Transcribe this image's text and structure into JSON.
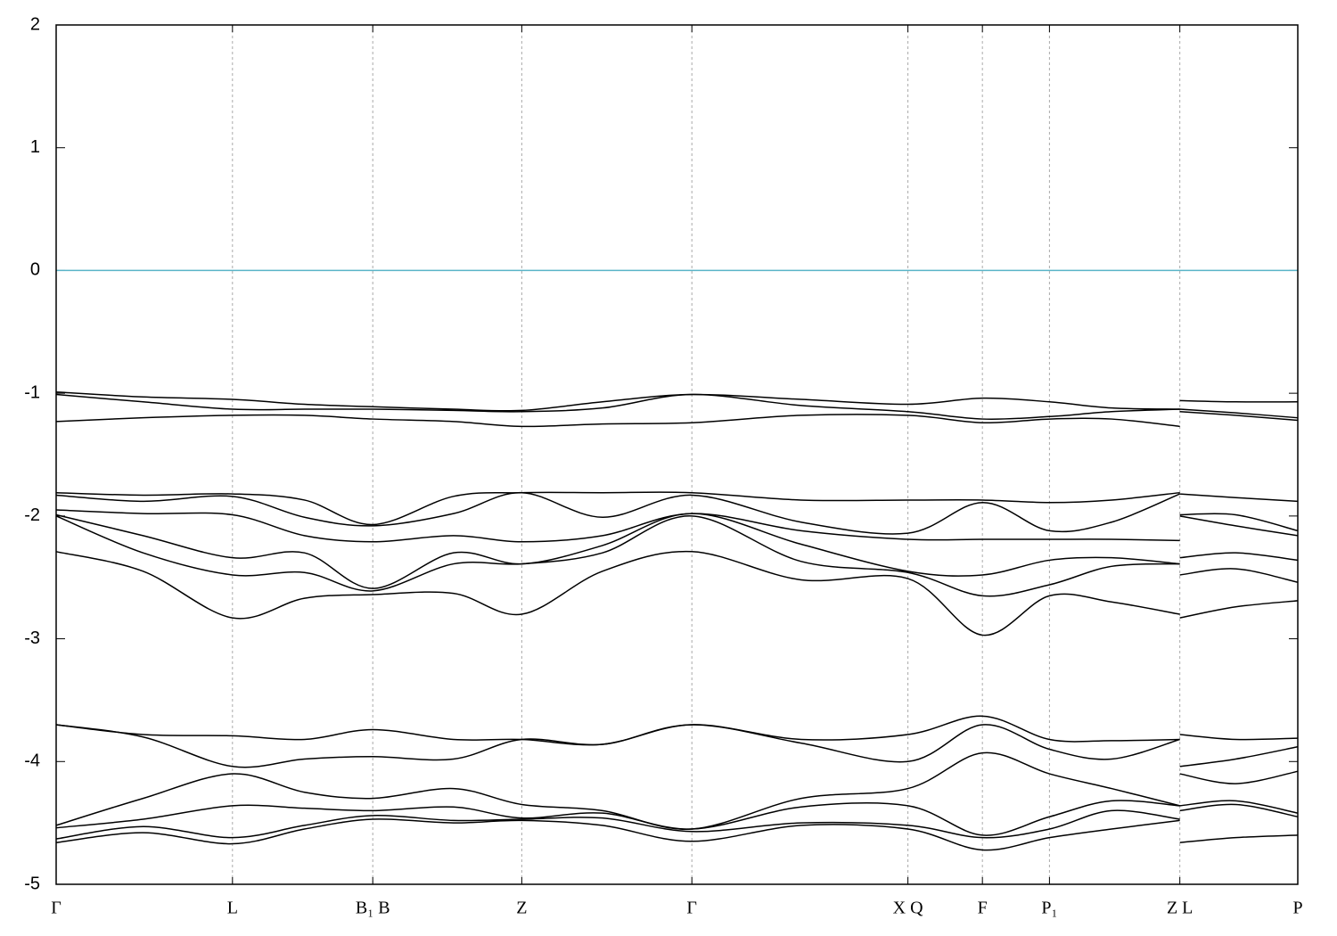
{
  "chart_data": {
    "type": "line",
    "x": [
      0,
      0.07,
      0.142,
      0.2,
      0.255,
      0.32,
      0.375,
      0.44,
      0.512,
      0.6,
      0.686,
      0.746,
      0.8,
      0.85,
      0.905,
      0.905,
      0.905,
      0.95,
      1
    ],
    "xlim": [
      0,
      1
    ],
    "xticks": [
      {
        "value": 0,
        "label": "Γ"
      },
      {
        "value": 0.142,
        "label": "L"
      },
      {
        "value": 0.255,
        "label": "B₁ B"
      },
      {
        "value": 0.375,
        "label": "Z"
      },
      {
        "value": 0.512,
        "label": "Γ"
      },
      {
        "value": 0.686,
        "label": "X Q"
      },
      {
        "value": 0.746,
        "label": "F"
      },
      {
        "value": 0.8,
        "label": "P₁"
      },
      {
        "value": 0.905,
        "label": "Z L"
      },
      {
        "value": 1,
        "label": "P"
      }
    ],
    "ylim": [
      -5,
      2
    ],
    "yticks": [
      -5,
      -4,
      -3,
      -2,
      -1,
      0,
      1,
      2
    ],
    "grid": "x",
    "hline": {
      "value": 0,
      "color": "#5ab4c8"
    },
    "series": [
      {
        "color": "#000000",
        "values": [
          -0.99,
          -1.03,
          -1.05,
          -1.09,
          -1.11,
          -1.13,
          -1.14,
          -1.07,
          -1.01,
          -1.05,
          -1.09,
          -1.04,
          -1.07,
          -1.12,
          -1.13,
          null,
          -1.06,
          -1.07,
          -1.07
        ]
      },
      {
        "color": "#000000",
        "values": [
          -1.01,
          -1.07,
          -1.13,
          -1.13,
          -1.13,
          -1.14,
          -1.15,
          -1.12,
          -1.01,
          -1.1,
          -1.15,
          -1.21,
          -1.19,
          -1.15,
          -1.13,
          null,
          -1.13,
          -1.16,
          -1.2
        ]
      },
      {
        "color": "#000000",
        "values": [
          -1.23,
          -1.2,
          -1.18,
          -1.18,
          -1.21,
          -1.23,
          -1.27,
          -1.25,
          -1.24,
          -1.18,
          -1.18,
          -1.24,
          -1.21,
          -1.21,
          -1.27,
          null,
          -1.15,
          -1.18,
          -1.22
        ]
      },
      {
        "color": "#000000",
        "values": [
          -1.81,
          -1.83,
          -1.82,
          -1.87,
          -2.07,
          -1.84,
          -1.81,
          -1.81,
          -1.81,
          -1.87,
          -1.87,
          -1.87,
          -1.89,
          -1.87,
          -1.81,
          null,
          -1.82,
          -1.85,
          -1.88
        ]
      },
      {
        "color": "#000000",
        "values": [
          -1.83,
          -1.88,
          -1.84,
          -2.01,
          -2.08,
          -1.98,
          -1.81,
          -2.01,
          -1.83,
          -2.05,
          -2.14,
          -1.89,
          -2.12,
          -2.05,
          -1.82,
          null,
          -1.99,
          -1.99,
          -2.12
        ]
      },
      {
        "color": "#000000",
        "values": [
          -1.95,
          -1.98,
          -1.99,
          -2.16,
          -2.21,
          -2.16,
          -2.21,
          -2.16,
          -1.98,
          -2.12,
          -2.19,
          -2.19,
          -2.19,
          -2.19,
          -2.2,
          null,
          -2.0,
          -2.08,
          -2.16
        ]
      },
      {
        "color": "#000000",
        "values": [
          -1.99,
          -2.16,
          -2.34,
          -2.3,
          -2.59,
          -2.3,
          -2.39,
          -2.24,
          -1.98,
          -2.23,
          -2.45,
          -2.48,
          -2.36,
          -2.34,
          -2.39,
          null,
          -2.34,
          -2.3,
          -2.36
        ]
      },
      {
        "color": "#000000",
        "values": [
          -2.0,
          -2.3,
          -2.48,
          -2.46,
          -2.61,
          -2.39,
          -2.39,
          -2.3,
          -2.0,
          -2.37,
          -2.46,
          -2.65,
          -2.56,
          -2.41,
          -2.39,
          null,
          -2.48,
          -2.43,
          -2.54
        ]
      },
      {
        "color": "#000000",
        "values": [
          -2.29,
          -2.45,
          -2.83,
          -2.67,
          -2.64,
          -2.63,
          -2.8,
          -2.45,
          -2.29,
          -2.52,
          -2.51,
          -2.97,
          -2.65,
          -2.7,
          -2.8,
          null,
          -2.83,
          -2.74,
          -2.69
        ]
      },
      {
        "color": "#000000",
        "values": [
          -3.7,
          -3.78,
          -3.79,
          -3.82,
          -3.74,
          -3.82,
          -3.82,
          -3.86,
          -3.7,
          -3.82,
          -3.78,
          -3.63,
          -3.82,
          -3.83,
          -3.82,
          null,
          -3.78,
          -3.82,
          -3.81
        ]
      },
      {
        "color": "#000000",
        "values": [
          -3.7,
          -3.8,
          -4.04,
          -3.98,
          -3.96,
          -3.98,
          -3.82,
          -3.86,
          -3.7,
          -3.85,
          -4.0,
          -3.7,
          -3.9,
          -3.98,
          -3.82,
          null,
          -4.04,
          -3.98,
          -3.88
        ]
      },
      {
        "color": "#000000",
        "values": [
          -4.52,
          -4.3,
          -4.1,
          -4.25,
          -4.3,
          -4.22,
          -4.35,
          -4.4,
          -4.55,
          -4.3,
          -4.22,
          -3.93,
          -4.1,
          -4.22,
          -4.36,
          null,
          -4.1,
          -4.18,
          -4.08
        ]
      },
      {
        "color": "#000000",
        "values": [
          -4.54,
          -4.47,
          -4.36,
          -4.38,
          -4.4,
          -4.37,
          -4.46,
          -4.42,
          -4.55,
          -4.37,
          -4.36,
          -4.6,
          -4.45,
          -4.32,
          -4.36,
          null,
          -4.36,
          -4.32,
          -4.42
        ]
      },
      {
        "color": "#000000",
        "values": [
          -4.63,
          -4.53,
          -4.62,
          -4.52,
          -4.44,
          -4.48,
          -4.47,
          -4.46,
          -4.57,
          -4.5,
          -4.52,
          -4.62,
          -4.55,
          -4.4,
          -4.47,
          null,
          -4.4,
          -4.35,
          -4.45
        ]
      },
      {
        "color": "#000000",
        "values": [
          -4.66,
          -4.58,
          -4.67,
          -4.55,
          -4.47,
          -4.5,
          -4.48,
          -4.52,
          -4.65,
          -4.52,
          -4.55,
          -4.72,
          -4.62,
          -4.55,
          -4.48,
          null,
          -4.66,
          -4.62,
          -4.6
        ]
      }
    ]
  }
}
